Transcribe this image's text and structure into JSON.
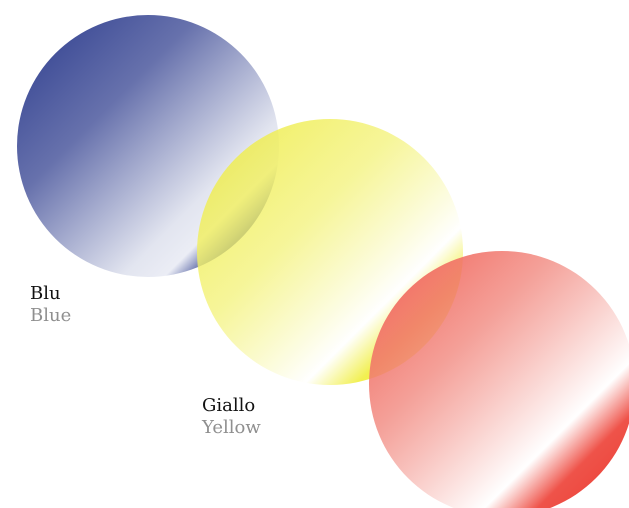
{
  "colors": {
    "blue": {
      "base": "#2c3e8f",
      "accent": "#ffffff"
    },
    "yellow": {
      "base": "#f1ef4c",
      "accent": "#ffffff"
    },
    "red": {
      "base": "#ef5a4f",
      "accent": "#ffffff"
    }
  },
  "labels": {
    "blue": {
      "primary": "Blu",
      "secondary": "Blue"
    },
    "yellow": {
      "primary": "Giallo",
      "secondary": "Yellow"
    }
  }
}
